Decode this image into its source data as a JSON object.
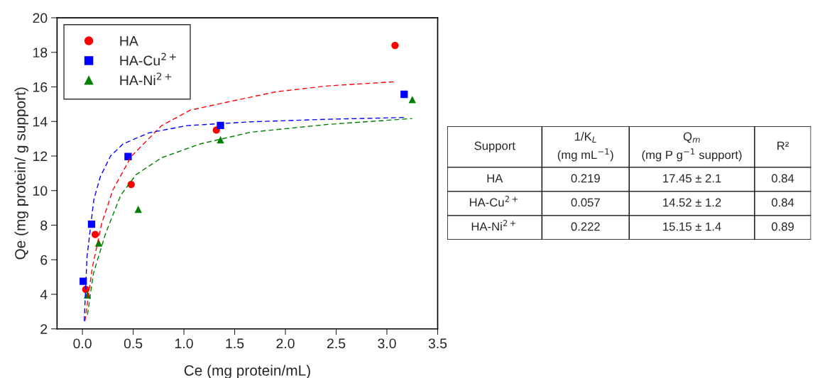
{
  "chart_data": [
    {
      "type": "scatter",
      "xlabel": "Ce (mg protein/mL)",
      "ylabel": "Qe (mg protein/ g support)",
      "xlim": [
        -0.25,
        3.5
      ],
      "ylim": [
        2,
        20
      ],
      "xticks": [
        {
          "value": 0,
          "label": "0.0"
        },
        0.5,
        {
          "value": 1,
          "label": "1.0"
        },
        1.5,
        {
          "value": 2,
          "label": "2.0"
        },
        2.5,
        {
          "value": 3,
          "label": "3.0"
        },
        3.5
      ],
      "yticks": [
        2,
        4,
        6,
        8,
        10,
        12,
        14,
        16,
        18,
        20
      ],
      "grid": false,
      "legend": "top left",
      "series": [
        {
          "name": "HA",
          "type": "scatter",
          "marker": "circle",
          "color": "#ff0000",
          "x": [
            0.033,
            0.126,
            0.48,
            1.32,
            3.08
          ],
          "values": [
            4.28,
            7.46,
            10.35,
            13.5,
            18.4
          ]
        },
        {
          "name": "HA-Cu$^{2+}$",
          "type": "scatter",
          "marker": "square",
          "color": "#0000ff",
          "x": [
            0.008,
            0.09,
            0.45,
            1.36,
            3.17
          ],
          "values": [
            4.75,
            8.06,
            11.97,
            13.77,
            15.57
          ]
        },
        {
          "name": "HA-Ni$^{2+}$",
          "type": "scatter",
          "marker": "triangle",
          "color": "#008000",
          "x": [
            0.05,
            0.16,
            0.55,
            1.36,
            3.25
          ],
          "values": [
            3.96,
            6.97,
            8.92,
            12.94,
            15.27
          ]
        },
        {
          "type": "line",
          "line_style": "dashed",
          "color": "#ff0000",
          "x": [
            0.025,
            0.096,
            0.19,
            0.3,
            0.48,
            0.78,
            1.06,
            1.41,
            1.91,
            2.42,
            3.08
          ],
          "values": [
            2.45,
            5.5,
            8.1,
            10.04,
            11.97,
            13.76,
            14.65,
            15.1,
            15.72,
            16.06,
            16.3
          ]
        },
        {
          "type": "line",
          "line_style": "dashed",
          "color": "#0000ff",
          "x": [
            0.018,
            0.045,
            0.113,
            0.176,
            0.277,
            0.4,
            0.655,
            1.03,
            1.66,
            2.42,
            3.17
          ],
          "values": [
            2.45,
            6.17,
            9.5,
            10.8,
            12.0,
            12.7,
            13.34,
            13.76,
            13.98,
            14.13,
            14.23
          ]
        },
        {
          "type": "line",
          "line_style": "dashed",
          "color": "#008000",
          "x": [
            0.05,
            0.108,
            0.227,
            0.378,
            0.53,
            0.78,
            1.16,
            1.66,
            2.42,
            3.25
          ],
          "values": [
            2.82,
            5.2,
            7.5,
            9.74,
            10.93,
            11.9,
            12.7,
            13.38,
            13.83,
            14.17
          ]
        }
      ]
    },
    {
      "type": "other",
      "annotations": [
        "Support",
        "1/K$_{L}$\n(mg mL$^{−1}$)",
        "Q$_{m}$\n(mg P g$^{−1}$ support)",
        "R²",
        "HA",
        "0.219",
        "17.45 ± 2.1",
        "0.84",
        "HA-Cu$^{2+}$",
        "0.057",
        "14.52 ± 1.2",
        "0.84",
        "HA-Ni$^{2+}$",
        "0.222",
        "15.15 ± 1.4",
        "0.89"
      ]
    }
  ]
}
